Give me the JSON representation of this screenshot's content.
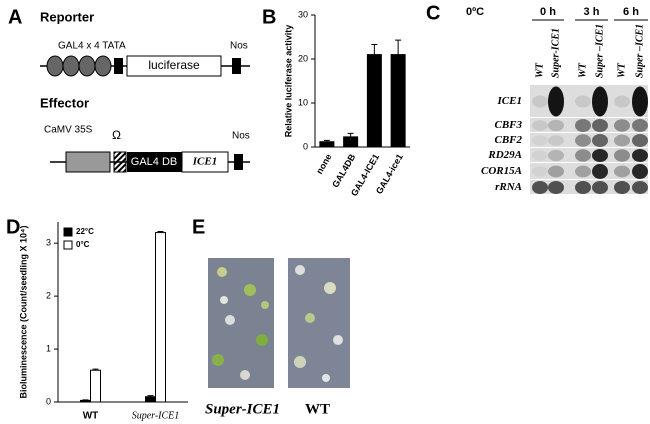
{
  "panels": {
    "a": {
      "letter": "A",
      "reporter": "Reporter",
      "gal4": "GAL4 x 4 TATA",
      "luciferase": "luciferase",
      "nos1": "Nos",
      "effector": "Effector",
      "camv": "CaMV 35S",
      "omega": "Ω",
      "gal4db": "GAL4 DB",
      "ice1": "ICE1",
      "nos2": "Nos"
    },
    "b": {
      "letter": "B"
    },
    "c": {
      "letter": "C",
      "temp": "0ºC",
      "times": [
        "0 h",
        "3 h",
        "6 h"
      ],
      "lanes": [
        "WT",
        "Super-ICE1",
        "WT",
        "Super –ICE1",
        "WT",
        "Super –ICE1"
      ],
      "genes": [
        "ICE1",
        "CBF3",
        "CBF2",
        "RD29A",
        "COR15A",
        "rRNA"
      ]
    },
    "d": {
      "letter": "D"
    },
    "e": {
      "letter": "E",
      "labels": [
        "Super-ICE1",
        "WT"
      ]
    }
  },
  "chart_data": [
    {
      "type": "bar",
      "y_label": "Relative luciferase activity",
      "categories": [
        "none",
        "GAL4DB",
        "GAL4-ICE1",
        "GAL4-ice1"
      ],
      "values": [
        1.2,
        2.3,
        21,
        21
      ],
      "errors": [
        0.3,
        0.8,
        2.3,
        3.3
      ],
      "color": "#000000",
      "ylim": [
        0,
        30
      ],
      "yticks": [
        0,
        10,
        20,
        30
      ]
    },
    {
      "type": "bar",
      "y_label": "Bioluminescence (Count/seedling X 10⁴)",
      "categories": [
        "WT",
        "Super-ICE1"
      ],
      "series": [
        {
          "name": "22°C",
          "color": "#000000",
          "values": [
            0.03,
            0.1
          ],
          "errors": [
            0.01,
            0.02
          ]
        },
        {
          "name": "0°C",
          "color": "#ffffff",
          "values": [
            0.6,
            3.2
          ],
          "errors": [
            0.02,
            0.02
          ]
        }
      ],
      "ylim": [
        0,
        3.4
      ],
      "yticks": [
        0,
        1,
        2,
        3
      ],
      "legend": "upper left"
    }
  ]
}
